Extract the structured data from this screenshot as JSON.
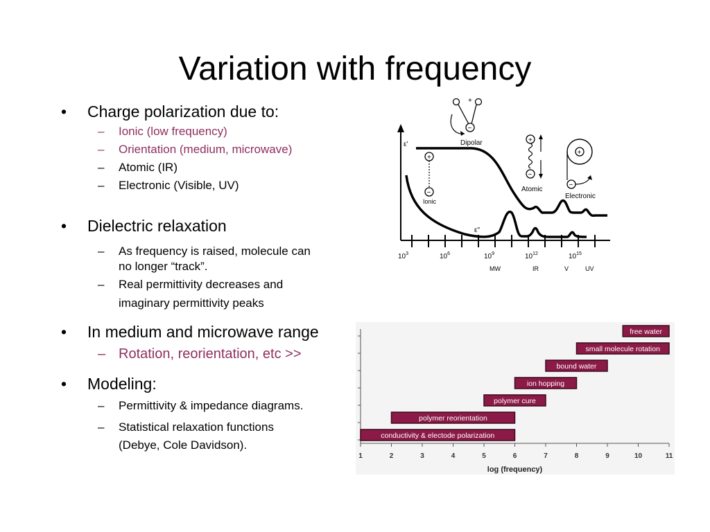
{
  "title": "Variation with frequency",
  "bullets": [
    {
      "text": "Charge polarization due to:",
      "subs": [
        {
          "text": "Ionic (low frequency)",
          "accent": true
        },
        {
          "text": "Orientation (medium, microwave)",
          "accent": true
        },
        {
          "text": "Atomic (IR)",
          "accent": false
        },
        {
          "text": "Electronic (Visible, UV)",
          "accent": false
        }
      ]
    },
    {
      "text": "Dielectric relaxation",
      "subs": [
        {
          "text": "As frequency is raised,  molecule can",
          "cont": "no longer “track”.",
          "accent": false
        },
        {
          "text": "Real permittivity decreases and",
          "cont": "imaginary permittivity peaks",
          "accent": false
        }
      ]
    },
    {
      "text": "In medium and microwave range",
      "subs": [
        {
          "text": "Rotation, reorientation, etc  >>",
          "accent": true
        }
      ]
    },
    {
      "text": "Modeling:",
      "subs": [
        {
          "text": "Permittivity & impedance diagrams.",
          "accent": false
        },
        {
          "text": "Statistical relaxation functions",
          "cont": "(Debye, Cole Davidson).",
          "accent": false
        }
      ]
    }
  ],
  "chart_data": [
    {
      "type": "line",
      "title": "",
      "xlabel": "",
      "ylabel": "",
      "x_scale": "log",
      "x_tick_labels": [
        "10^3",
        "10^6",
        "10^9",
        "10^12",
        "10^15"
      ],
      "region_labels": [
        "MW",
        "IR",
        "V",
        "UV"
      ],
      "series": [
        {
          "name": "ε'",
          "shape": "step-down decreases with frequency; resonant wiggles near 10^12 and 10^15"
        },
        {
          "name": "ε\"",
          "shape": "falls from low-frequency side; peaks near 10^9-10^10, 10^12 and 10^15"
        }
      ],
      "annotations": [
        "Dipolar",
        "Ionic",
        "Atomic",
        "Electronic",
        "+",
        "−"
      ]
    },
    {
      "type": "bar",
      "subtype": "horizontal-range",
      "xlabel": "log (frequency)",
      "ylabel": "",
      "xlim": [
        1,
        11
      ],
      "x_ticks": [
        "1",
        "2",
        "3",
        "4",
        "5",
        "6",
        "7",
        "8",
        "9",
        "10",
        "11"
      ],
      "accent_color": "#8b1a47",
      "bars": [
        {
          "label": "free water",
          "start": 9.5,
          "end": 11
        },
        {
          "label": "small molecule rotation",
          "start": 8.0,
          "end": 11
        },
        {
          "label": "bound water",
          "start": 7.0,
          "end": 9
        },
        {
          "label": "ion hopping",
          "start": 6.0,
          "end": 8
        },
        {
          "label": "polymer cure",
          "start": 5.0,
          "end": 7
        },
        {
          "label": "polymer reorientation",
          "start": 2.0,
          "end": 6
        },
        {
          "label": "conductivity & electode polarization",
          "start": 1.0,
          "end": 6
        }
      ]
    }
  ]
}
